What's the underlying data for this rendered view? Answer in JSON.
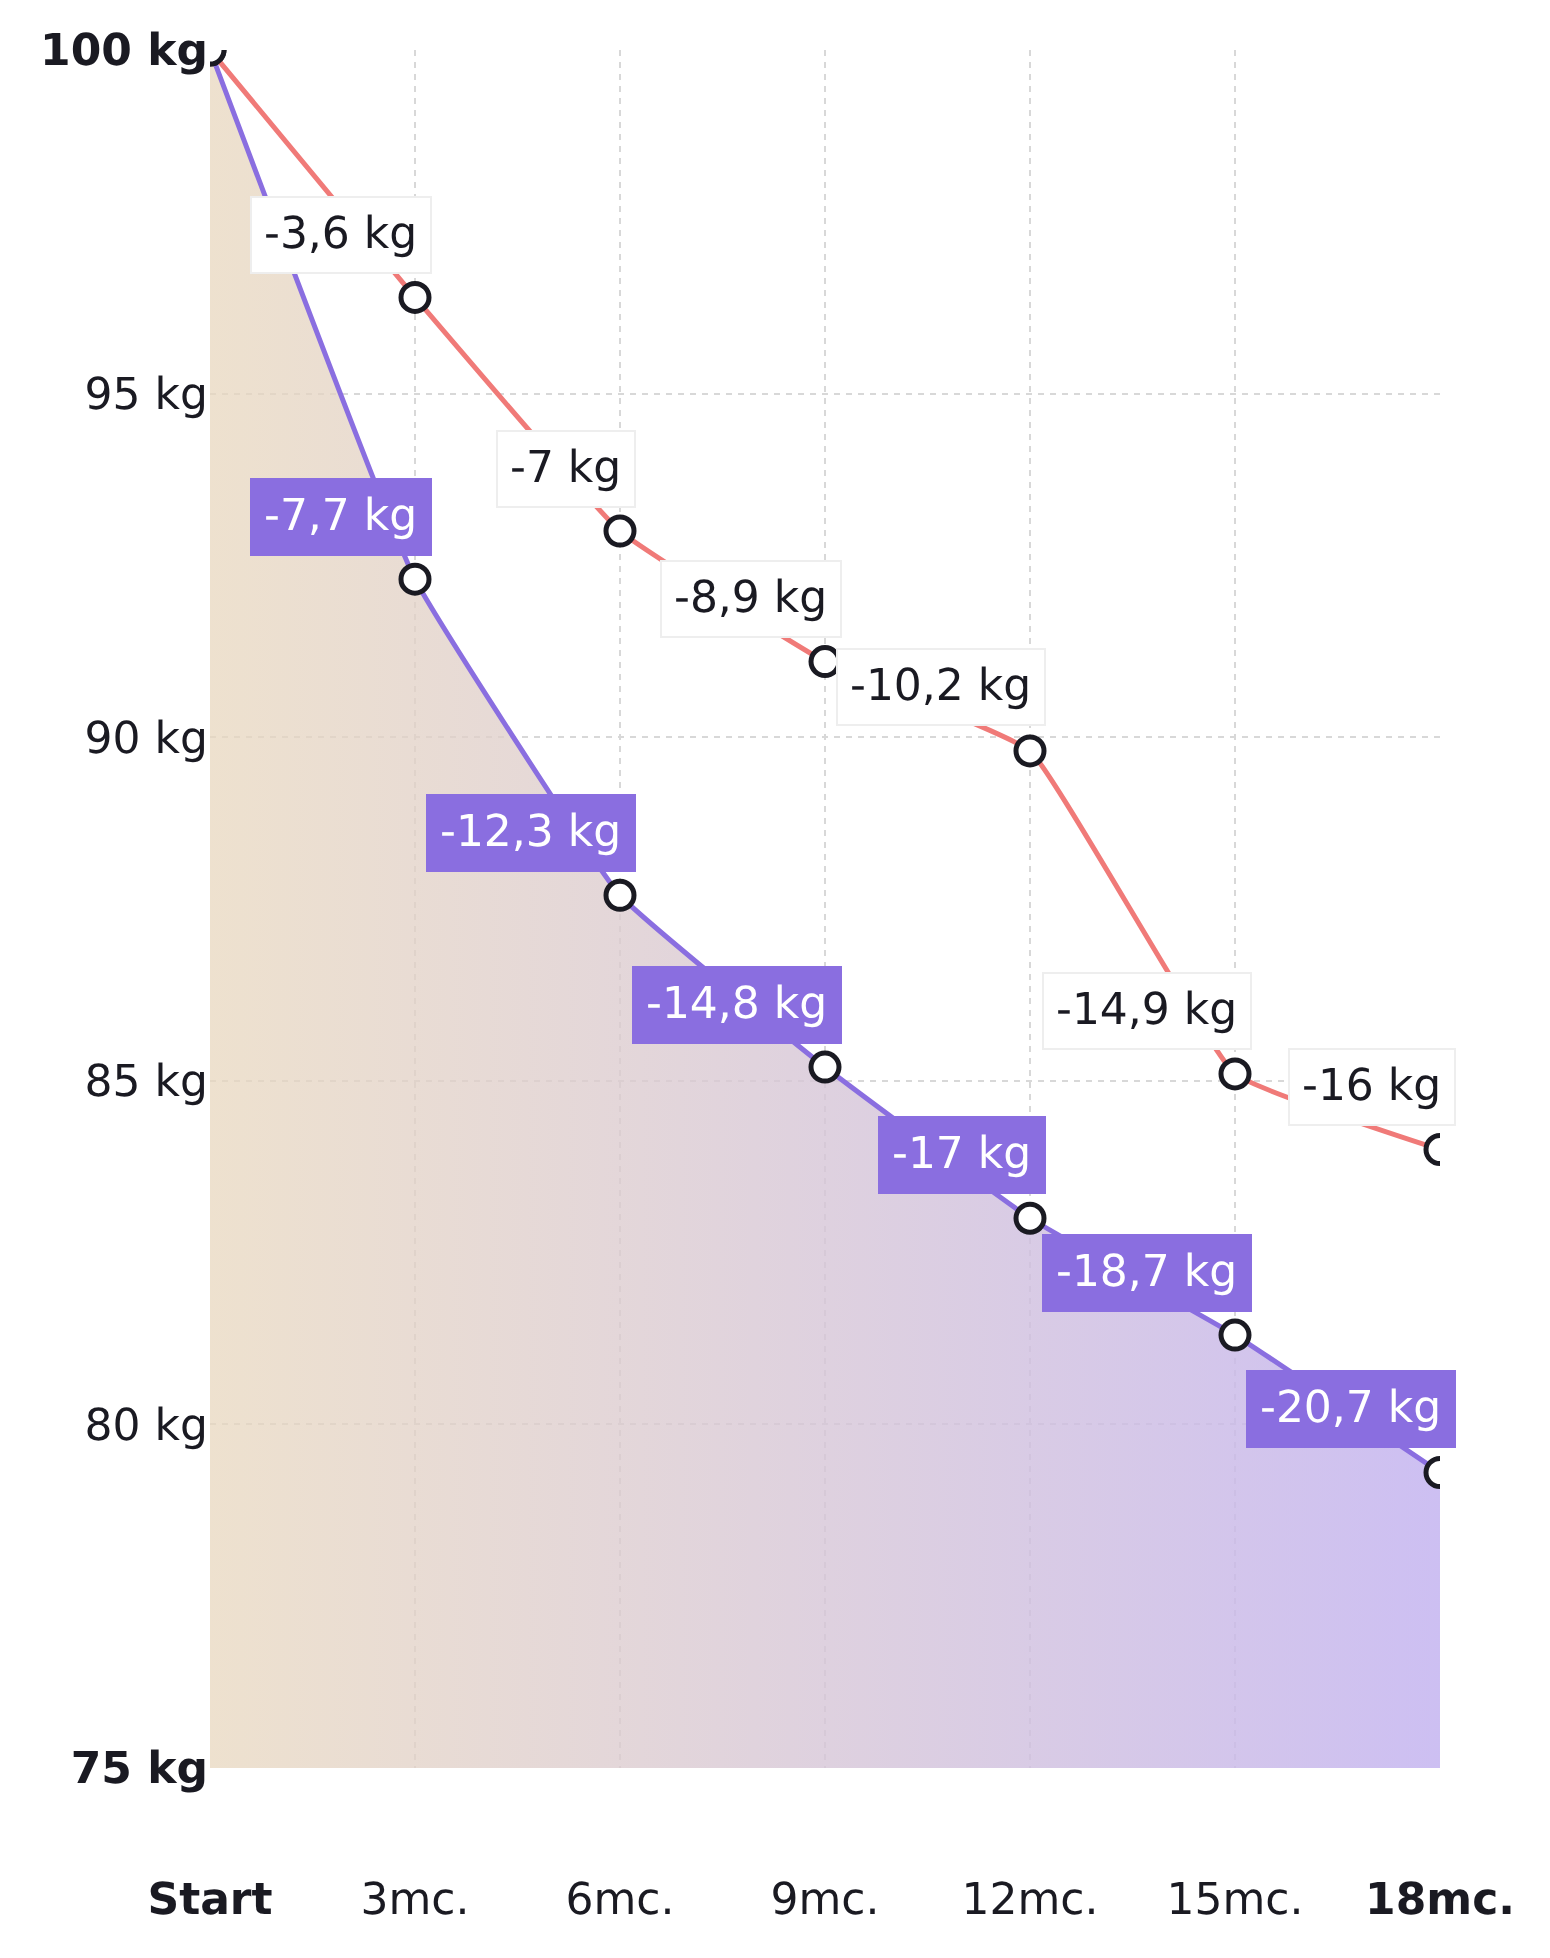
{
  "chart_data": {
    "type": "line",
    "categories": [
      "Start",
      "3mc.",
      "6mc.",
      "9mc.",
      "12mc.",
      "15mc.",
      "18mc."
    ],
    "series": [
      {
        "type": "line",
        "color": "#f07a78",
        "values": [
          100,
          96.4,
          93,
          91.1,
          89.8,
          85.1,
          84
        ]
      },
      {
        "type": "area",
        "color": "#8a6ee0",
        "values": [
          100,
          92.3,
          87.7,
          85.2,
          83,
          81.3,
          79.3
        ]
      }
    ],
    "annotations": [
      {
        "text": "-3,6 kg",
        "x": "3mc.",
        "y": 96.4
      },
      {
        "text": "-7 kg",
        "x": "6mc.",
        "y": 93
      },
      {
        "text": "-8,9 kg",
        "x": "9mc.",
        "y": 91.1
      },
      {
        "text": "-10,2 kg",
        "x": "12mc.",
        "y": 89.8
      },
      {
        "text": "-14,9 kg",
        "x": "15mc.",
        "y": 85.1
      },
      {
        "text": "-16 kg",
        "x": "18mc.",
        "y": 84
      },
      {
        "text": "-7,7 kg",
        "x": "3mc.",
        "y": 92.3
      },
      {
        "text": "-12,3 kg",
        "x": "6mc.",
        "y": 87.7
      },
      {
        "text": "-14,8 kg",
        "x": "9mc.",
        "y": 85.2
      },
      {
        "text": "-17 kg",
        "x": "12mc.",
        "y": 83
      },
      {
        "text": "-18,7 kg",
        "x": "15mc.",
        "y": 81.3
      },
      {
        "text": "-20,7 kg",
        "x": "18mc.",
        "y": 79.3
      }
    ],
    "ylim": [
      75,
      100
    ],
    "yticks": [
      {
        "value": 75,
        "label": "75 kg"
      },
      {
        "value": 80,
        "label": "80 kg"
      },
      {
        "value": 85,
        "label": "85 kg"
      },
      {
        "value": 90,
        "label": "90 kg"
      },
      {
        "value": 95,
        "label": "95 kg"
      },
      {
        "value": 100,
        "label": "100 kg"
      }
    ],
    "grid": true,
    "marker": "circle",
    "line_style": "solid"
  }
}
